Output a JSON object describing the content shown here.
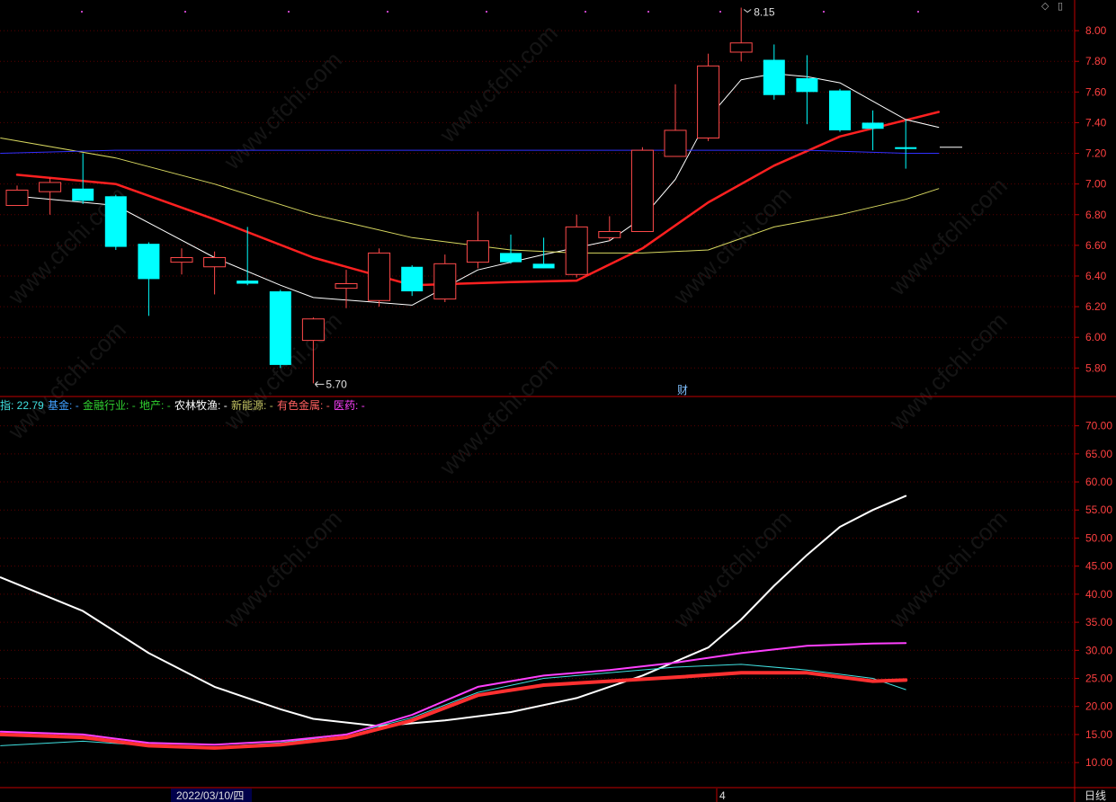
{
  "toolbar": {
    "diamond_icon": "diamond-icon",
    "panel_icon": "panel-icon"
  },
  "chart_data": [
    {
      "type": "candlestick",
      "yticks": [
        "8.00",
        "7.80",
        "7.60",
        "7.40",
        "7.20",
        "7.00",
        "6.80",
        "6.60",
        "6.40",
        "6.20",
        "6.00",
        "5.80"
      ],
      "ylim": [
        5.62,
        8.2
      ],
      "candles": [
        {
          "o": 6.86,
          "c": 6.96,
          "h": 6.99,
          "l": 6.86
        },
        {
          "o": 6.95,
          "c": 7.01,
          "h": 7.04,
          "l": 6.8
        },
        {
          "o": 6.97,
          "c": 6.89,
          "h": 7.2,
          "l": 6.87
        },
        {
          "o": 6.92,
          "c": 6.59,
          "h": 6.93,
          "l": 6.57
        },
        {
          "o": 6.61,
          "c": 6.38,
          "h": 6.62,
          "l": 6.14
        },
        {
          "o": 6.49,
          "c": 6.52,
          "h": 6.58,
          "l": 6.41
        },
        {
          "o": 6.46,
          "c": 6.52,
          "h": 6.56,
          "l": 6.28
        },
        {
          "o": 6.37,
          "c": 6.35,
          "h": 6.72,
          "l": 6.34
        },
        {
          "o": 6.3,
          "c": 5.82,
          "h": 6.31,
          "l": 5.8
        },
        {
          "o": 5.98,
          "c": 6.12,
          "h": 6.13,
          "l": 5.7
        },
        {
          "o": 6.32,
          "c": 6.35,
          "h": 6.44,
          "l": 6.19
        },
        {
          "o": 6.24,
          "c": 6.55,
          "h": 6.58,
          "l": 6.2
        },
        {
          "o": 6.46,
          "c": 6.3,
          "h": 6.47,
          "l": 6.27
        },
        {
          "o": 6.25,
          "c": 6.48,
          "h": 6.54,
          "l": 6.23
        },
        {
          "o": 6.49,
          "c": 6.63,
          "h": 6.82,
          "l": 6.45
        },
        {
          "o": 6.55,
          "c": 6.49,
          "h": 6.67,
          "l": 6.48
        },
        {
          "o": 6.48,
          "c": 6.45,
          "h": 6.65,
          "l": 6.45
        },
        {
          "o": 6.41,
          "c": 6.72,
          "h": 6.8,
          "l": 6.39
        },
        {
          "o": 6.65,
          "c": 6.69,
          "h": 6.79,
          "l": 6.63
        },
        {
          "o": 6.69,
          "c": 7.22,
          "h": 7.24,
          "l": 6.69
        },
        {
          "o": 7.18,
          "c": 7.35,
          "h": 7.65,
          "l": 7.18
        },
        {
          "o": 7.3,
          "c": 7.77,
          "h": 7.85,
          "l": 7.28
        },
        {
          "o": 7.86,
          "c": 7.92,
          "h": 8.15,
          "l": 7.8
        },
        {
          "o": 7.81,
          "c": 7.58,
          "h": 7.91,
          "l": 7.55
        },
        {
          "o": 7.69,
          "c": 7.6,
          "h": 7.84,
          "l": 7.39
        },
        {
          "o": 7.61,
          "c": 7.35,
          "h": 7.62,
          "l": 7.34
        },
        {
          "o": 7.4,
          "c": 7.36,
          "h": 7.48,
          "l": 7.22
        },
        {
          "o": 7.24,
          "c": 7.23,
          "h": 7.42,
          "l": 7.1
        }
      ],
      "annotations": {
        "high": "8.15",
        "low": "5.70",
        "event": "财"
      },
      "series": [
        {
          "color": "#ff2020",
          "width": 2.5,
          "values": [
            [
              0,
              7.06
            ],
            [
              3,
              7.0
            ],
            [
              6,
              6.77
            ],
            [
              9,
              6.52
            ],
            [
              12,
              6.34
            ],
            [
              15,
              6.36
            ],
            [
              17,
              6.37
            ],
            [
              19,
              6.58
            ],
            [
              21,
              6.88
            ],
            [
              23,
              7.12
            ],
            [
              25,
              7.31
            ],
            [
              28,
              7.47
            ]
          ]
        },
        {
          "color": "#ffffff",
          "width": 1,
          "values": [
            [
              0,
              6.92
            ],
            [
              3,
              6.86
            ],
            [
              6,
              6.52
            ],
            [
              8,
              6.34
            ],
            [
              9,
              6.26
            ],
            [
              12,
              6.21
            ],
            [
              14,
              6.44
            ],
            [
              16,
              6.54
            ],
            [
              18,
              6.63
            ],
            [
              19,
              6.78
            ],
            [
              20,
              7.03
            ],
            [
              21,
              7.43
            ],
            [
              22,
              7.68
            ],
            [
              23,
              7.72
            ],
            [
              24,
              7.7
            ],
            [
              25,
              7.66
            ],
            [
              26,
              7.54
            ],
            [
              27,
              7.42
            ],
            [
              28,
              7.37
            ]
          ]
        },
        {
          "color": "#d8d860",
          "width": 1,
          "values": [
            [
              -0.5,
              7.3
            ],
            [
              3,
              7.17
            ],
            [
              6,
              7.0
            ],
            [
              9,
              6.8
            ],
            [
              12,
              6.65
            ],
            [
              15,
              6.57
            ],
            [
              17,
              6.55
            ],
            [
              19,
              6.55
            ],
            [
              21,
              6.57
            ],
            [
              23,
              6.72
            ],
            [
              25,
              6.8
            ],
            [
              27,
              6.9
            ],
            [
              28,
              6.97
            ]
          ]
        },
        {
          "color": "#3030ff",
          "width": 1,
          "values": [
            [
              -0.5,
              7.2
            ],
            [
              3,
              7.22
            ],
            [
              14,
              7.22
            ],
            [
              24,
              7.22
            ],
            [
              27,
              7.2
            ],
            [
              28,
              7.2
            ]
          ]
        }
      ]
    },
    {
      "type": "line",
      "legend": [
        {
          "text": "指: 22.79",
          "color": "#40e0e0"
        },
        {
          "text": "基金: -",
          "color": "#40a0ff"
        },
        {
          "text": "金融行业: -",
          "color": "#30d030"
        },
        {
          "text": "地产: -",
          "color": "#30d030"
        },
        {
          "text": "农林牧渔: -",
          "color": "#ffffff"
        },
        {
          "text": "新能源: -",
          "color": "#c0c060"
        },
        {
          "text": "有色金属: -",
          "color": "#ff6060"
        },
        {
          "text": "医药: -",
          "color": "#ff40ff"
        }
      ],
      "yticks": [
        "70.00",
        "65.00",
        "60.00",
        "55.00",
        "50.00",
        "45.00",
        "40.00",
        "35.00",
        "30.00",
        "25.00",
        "20.00",
        "15.00",
        "10.00"
      ],
      "ylim": [
        6.5,
        72.5
      ],
      "series": [
        {
          "color": "#ffffff",
          "width": 2,
          "values": [
            [
              -0.5,
              43
            ],
            [
              2,
              37
            ],
            [
              4,
              29.5
            ],
            [
              6,
              23.5
            ],
            [
              8,
              19.5
            ],
            [
              9,
              17.8
            ],
            [
              11,
              16.5
            ],
            [
              13,
              17.5
            ],
            [
              15,
              19
            ],
            [
              17,
              21.5
            ],
            [
              19,
              25.5
            ],
            [
              21,
              30.5
            ],
            [
              22,
              35.5
            ],
            [
              23,
              41.5
            ],
            [
              24,
              47
            ],
            [
              25,
              52
            ],
            [
              26,
              55
            ],
            [
              27,
              57.5
            ]
          ]
        },
        {
          "color": "#40e0e0",
          "width": 1,
          "values": [
            [
              -0.5,
              13
            ],
            [
              2,
              13.8
            ],
            [
              4,
              13
            ],
            [
              6,
              12.8
            ],
            [
              8,
              13.5
            ],
            [
              10,
              15
            ],
            [
              12,
              18
            ],
            [
              14,
              22.5
            ],
            [
              16,
              25
            ],
            [
              18,
              26
            ],
            [
              20,
              27
            ],
            [
              22,
              27.5
            ],
            [
              24,
              26.5
            ],
            [
              26,
              25
            ],
            [
              27,
              23
            ]
          ]
        },
        {
          "color": "#ff3030",
          "width": 4,
          "values": [
            [
              -0.5,
              15
            ],
            [
              2,
              14.5
            ],
            [
              4,
              13
            ],
            [
              6,
              12.6
            ],
            [
              8,
              13.2
            ],
            [
              10,
              14.5
            ],
            [
              12,
              17.5
            ],
            [
              14,
              22
            ],
            [
              16,
              23.8
            ],
            [
              18,
              24.5
            ],
            [
              20,
              25.2
            ],
            [
              22,
              26
            ],
            [
              24,
              26
            ],
            [
              26,
              24.5
            ],
            [
              27,
              24.7
            ]
          ]
        },
        {
          "color": "#ff40ff",
          "width": 2,
          "values": [
            [
              -0.5,
              15.5
            ],
            [
              2,
              15
            ],
            [
              4,
              13.5
            ],
            [
              6,
              13.2
            ],
            [
              8,
              13.8
            ],
            [
              10,
              15
            ],
            [
              12,
              18.5
            ],
            [
              14,
              23.5
            ],
            [
              16,
              25.5
            ],
            [
              18,
              26.5
            ],
            [
              20,
              27.8
            ],
            [
              22,
              29.5
            ],
            [
              24,
              30.8
            ],
            [
              26,
              31.2
            ],
            [
              27,
              31.3
            ]
          ]
        }
      ]
    }
  ],
  "bottom": {
    "date_label": "2022/03/10/四",
    "month_marker": "4",
    "period": "日线"
  }
}
